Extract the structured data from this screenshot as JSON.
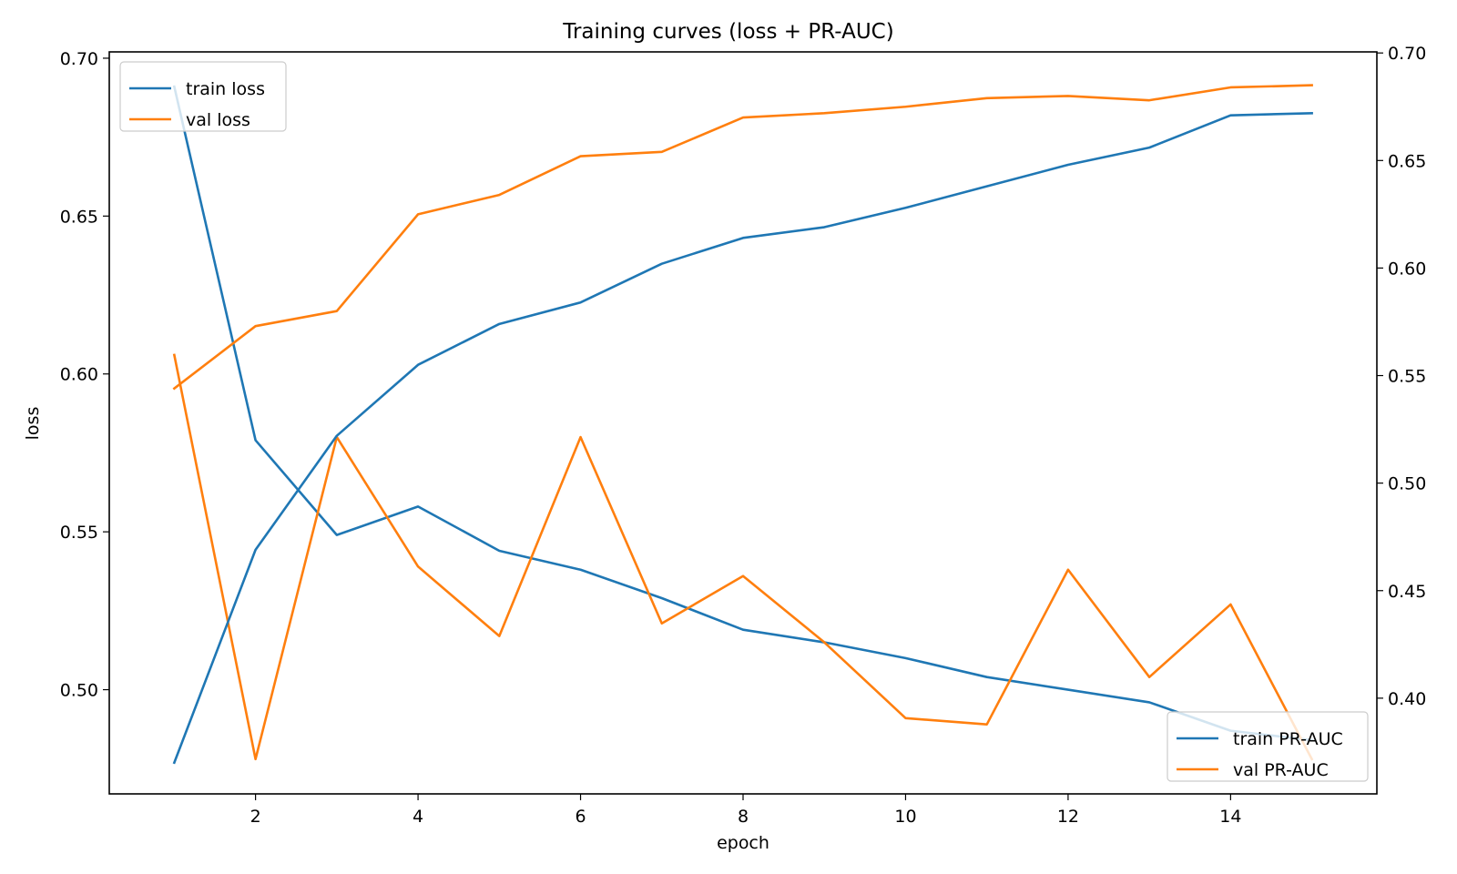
{
  "chart_data": {
    "type": "line",
    "title": "Training curves (loss + PR-AUC)",
    "xlabel": "epoch",
    "ylabel": "loss",
    "y2label": "",
    "x": [
      1,
      2,
      3,
      4,
      5,
      6,
      7,
      8,
      9,
      10,
      11,
      12,
      13,
      14,
      15
    ],
    "xlim": [
      0.2,
      15.8
    ],
    "ylim": [
      0.467,
      0.702
    ],
    "y2lim": [
      0.3555,
      0.7005
    ],
    "xticks": [
      2,
      4,
      6,
      8,
      10,
      12,
      14
    ],
    "yticks": [
      0.5,
      0.55,
      0.6,
      0.65,
      0.7
    ],
    "y2ticks": [
      0.4,
      0.45,
      0.5,
      0.55,
      0.6,
      0.65,
      0.7
    ],
    "series": [
      {
        "name": "train loss",
        "axis": "left",
        "color": "#1f77b4",
        "values": [
          0.691,
          0.579,
          0.549,
          0.558,
          0.544,
          0.538,
          0.529,
          0.519,
          0.515,
          0.51,
          0.504,
          0.5,
          0.496,
          0.487,
          0.484
        ]
      },
      {
        "name": "val loss",
        "axis": "left",
        "color": "#ff7f0e",
        "values": [
          0.606,
          0.478,
          0.58,
          0.539,
          0.517,
          0.58,
          0.521,
          0.536,
          0.515,
          0.491,
          0.489,
          0.538,
          0.504,
          0.527,
          0.478
        ]
      },
      {
        "name": "train PR-AUC",
        "axis": "right",
        "color": "#1f77b4",
        "values": [
          0.37,
          0.469,
          0.522,
          0.555,
          0.574,
          0.584,
          0.602,
          0.614,
          0.619,
          0.628,
          0.638,
          0.648,
          0.656,
          0.671,
          0.672
        ]
      },
      {
        "name": "val PR-AUC",
        "axis": "right",
        "color": "#ff7f0e",
        "values": [
          0.544,
          0.573,
          0.58,
          0.625,
          0.634,
          0.652,
          0.654,
          0.67,
          0.672,
          0.675,
          0.679,
          0.68,
          0.678,
          0.684,
          0.685
        ]
      }
    ],
    "legends": [
      {
        "placement": "upper-left",
        "entries": [
          "train loss",
          "val loss"
        ]
      },
      {
        "placement": "lower-right",
        "entries": [
          "train PR-AUC",
          "val PR-AUC"
        ]
      }
    ],
    "grid": false
  }
}
